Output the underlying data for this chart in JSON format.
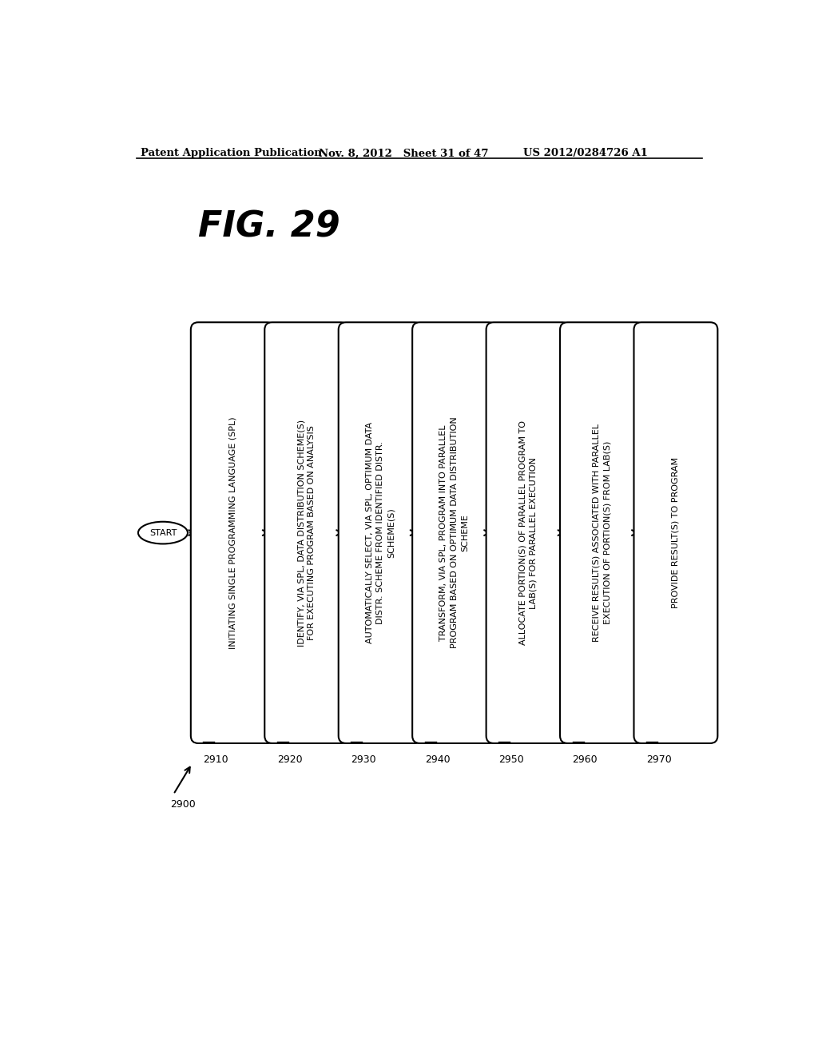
{
  "background_color": "#ffffff",
  "header_left": "Patent Application Publication",
  "header_center": "Nov. 8, 2012   Sheet 31 of 47",
  "header_right": "US 2012/0284726 A1",
  "fig_label": "FIG. 29",
  "diagram_label": "2900",
  "start_label": "START",
  "boxes": [
    {
      "id": "2910",
      "text": "INITIATING SINGLE PROGRAMMING LANGUAGE (SPL)"
    },
    {
      "id": "2920",
      "text": "IDENTIFY, VIA SPL, DATA DISTRIBUTION SCHEME(S)\nFOR EXECUTING PROGRAM BASED ON ANALYSIS"
    },
    {
      "id": "2930",
      "text": "AUTOMATICALLY SELECT, VIA SPL, OPTIMUM DATA\nDISTR. SCHEME FROM IDENTIFIED DISTR.\nSCHEME(S)"
    },
    {
      "id": "2940",
      "text": "TRANSFORM, VIA SPL, PROGRAM INTO PARALLEL\nPROGRAM BASED ON OPTIMUM DATA DISTRIBUTION\nSCHEME"
    },
    {
      "id": "2950",
      "text": "ALLOCATE PORTION(S) OF PARALLEL PROGRAM TO\nLAB(S) FOR PARALLEL EXECUTION"
    },
    {
      "id": "2960",
      "text": "RECEIVE RESULT(S) ASSOCIATED WITH PARALLEL\nEXECUTION OF PORTION(S) FROM LAB(S)"
    },
    {
      "id": "2970",
      "text": "PROVIDE RESULT(S) TO PROGRAM"
    }
  ]
}
